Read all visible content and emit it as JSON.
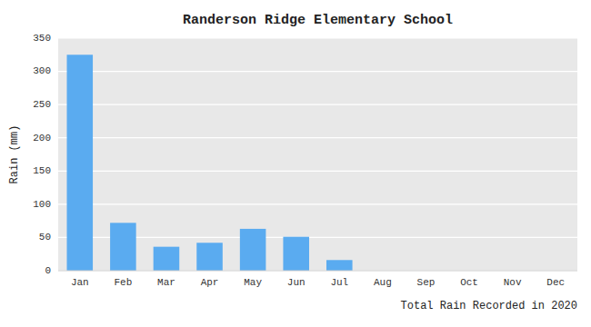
{
  "chart_data": {
    "type": "bar",
    "title": "Randerson Ridge Elementary School",
    "xlabel": "Total Rain Recorded in 2020",
    "ylabel": "Rain (mm)",
    "categories": [
      "Jan",
      "Feb",
      "Mar",
      "Apr",
      "May",
      "Jun",
      "Jul",
      "Aug",
      "Sep",
      "Oct",
      "Nov",
      "Dec"
    ],
    "values": [
      325,
      72,
      36,
      42,
      63,
      51,
      16,
      0,
      0,
      0,
      0,
      0
    ],
    "color": "#5aabf0",
    "ylim": [
      0,
      350
    ],
    "yticks": [
      0,
      50,
      100,
      150,
      200,
      250,
      300,
      350
    ],
    "grid": true
  }
}
